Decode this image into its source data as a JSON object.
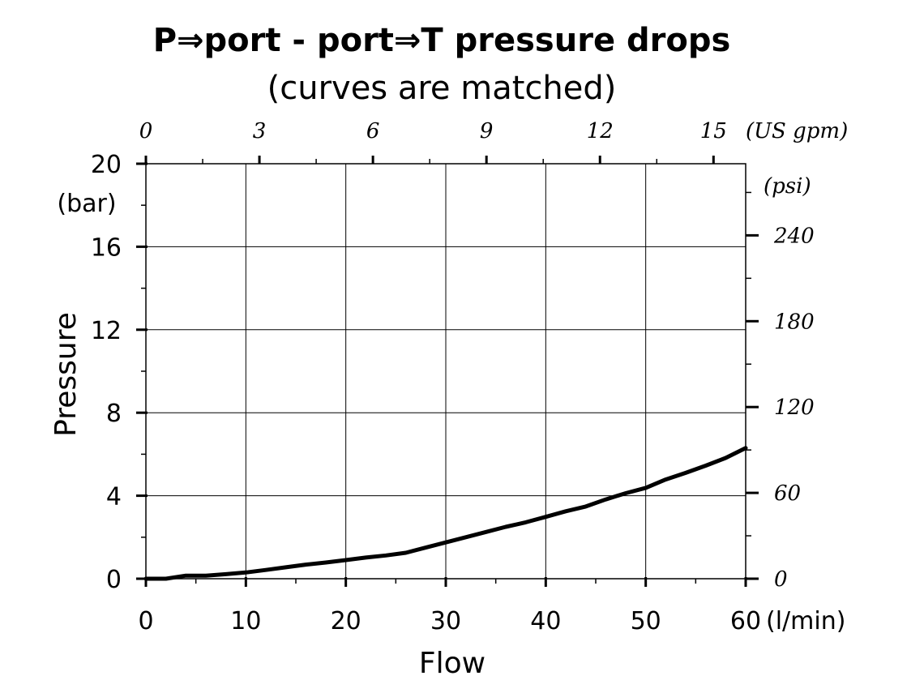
{
  "chart_data": {
    "type": "line",
    "title": "P⇒port - port⇒T pressure drops",
    "subtitle": "(curves are matched)",
    "xlabel": "Flow",
    "x_unit": "(l/min)",
    "ylabel": "Pressure",
    "y_unit": "(bar)",
    "xlim": [
      0,
      60
    ],
    "ylim": [
      0,
      20
    ],
    "x_ticks": [
      "0",
      "10",
      "20",
      "30",
      "40",
      "50",
      "60"
    ],
    "y_ticks": [
      "0",
      "4",
      "8",
      "12",
      "16",
      "20"
    ],
    "top_axis": {
      "unit": "(US gpm)",
      "ticks": [
        {
          "label": "0",
          "value": 0
        },
        {
          "label": "3",
          "value": 3
        },
        {
          "label": "6",
          "value": 6
        },
        {
          "label": "9",
          "value": 9
        },
        {
          "label": "12",
          "value": 12
        },
        {
          "label": "15",
          "value": 15
        }
      ]
    },
    "right_axis": {
      "unit": "(psi)",
      "ticks": [
        {
          "label": "0",
          "value": 0
        },
        {
          "label": "60",
          "value": 60
        },
        {
          "label": "120",
          "value": 120
        },
        {
          "label": "180",
          "value": 180
        },
        {
          "label": "240",
          "value": 240
        }
      ]
    },
    "grid": true,
    "series": [
      {
        "x": [
          0,
          2,
          4,
          6,
          8,
          10,
          12,
          14,
          16,
          18,
          20,
          22,
          24,
          26,
          28,
          30,
          32,
          34,
          36,
          38,
          40,
          42,
          44,
          46,
          48,
          50,
          52,
          54,
          56,
          58,
          60
        ],
        "y": [
          0.0,
          0.0,
          0.15,
          0.15,
          0.22,
          0.3,
          0.42,
          0.55,
          0.68,
          0.78,
          0.9,
          1.02,
          1.12,
          1.25,
          1.5,
          1.75,
          2.0,
          2.25,
          2.5,
          2.72,
          2.98,
          3.25,
          3.48,
          3.82,
          4.12,
          4.38,
          4.78,
          5.1,
          5.45,
          5.82,
          6.3
        ]
      }
    ]
  }
}
